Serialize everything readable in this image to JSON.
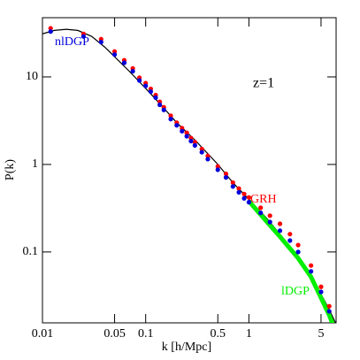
{
  "chart_data": {
    "type": "line",
    "xlabel": "k [h/Mpc]",
    "ylabel": "P(k)",
    "annotations": [
      {
        "text": "z=1"
      }
    ],
    "xlog": true,
    "ylog": true,
    "xlim": [
      0.01,
      7
    ],
    "ylim": [
      0.0155,
      47.5
    ],
    "xticks": [
      0.01,
      0.05,
      0.1,
      0.5,
      1,
      5
    ],
    "yticks": [
      0.1,
      1,
      10
    ],
    "series": [
      {
        "style": "line",
        "color": "#000000",
        "x": [
          0.01,
          0.013,
          0.017,
          0.022,
          0.03,
          0.04,
          0.05,
          0.07,
          0.1,
          0.15,
          0.2,
          0.3,
          0.5,
          0.7,
          1,
          1.5,
          2,
          3,
          4,
          5,
          6,
          7
        ],
        "values": [
          31,
          34,
          35,
          34,
          29,
          22,
          17,
          11.5,
          7.4,
          4.4,
          3.0,
          1.9,
          1.0,
          0.62,
          0.4,
          0.24,
          0.16,
          0.085,
          0.055,
          0.033,
          0.022,
          0.015
        ]
      },
      {
        "name": "lDGP",
        "style": "band",
        "color": "#00ee00",
        "x": [
          1,
          1.5,
          2,
          3,
          4,
          5,
          6,
          6.5
        ],
        "values": [
          0.38,
          0.22,
          0.15,
          0.085,
          0.052,
          0.03,
          0.019,
          0.015
        ]
      },
      {
        "name": "GRH",
        "style": "points",
        "color": "#ff0000",
        "x": [
          0.012,
          0.025,
          0.037,
          0.05,
          0.062,
          0.075,
          0.087,
          0.1,
          0.112,
          0.125,
          0.137,
          0.15,
          0.175,
          0.2,
          0.225,
          0.25,
          0.275,
          0.3,
          0.35,
          0.4,
          0.5,
          0.6,
          0.7,
          0.8,
          0.9,
          1.0,
          1.3,
          1.6,
          2,
          2.5,
          3,
          4,
          5,
          6
        ],
        "values": [
          36,
          31,
          27,
          19.5,
          15.5,
          12.5,
          9.8,
          8.5,
          7.3,
          6.2,
          5.2,
          4.5,
          3.6,
          3.0,
          2.6,
          2.3,
          2.0,
          1.8,
          1.5,
          1.25,
          0.95,
          0.78,
          0.62,
          0.53,
          0.46,
          0.42,
          0.32,
          0.26,
          0.21,
          0.16,
          0.12,
          0.07,
          0.04,
          0.024
        ]
      },
      {
        "name": "nlDGP",
        "style": "points",
        "color": "#0000dd",
        "x": [
          0.012,
          0.025,
          0.037,
          0.05,
          0.062,
          0.075,
          0.087,
          0.1,
          0.112,
          0.125,
          0.137,
          0.15,
          0.175,
          0.2,
          0.225,
          0.25,
          0.275,
          0.3,
          0.35,
          0.4,
          0.5,
          0.6,
          0.7,
          0.8,
          0.9,
          1.0,
          1.3,
          1.6,
          2,
          2.5,
          3,
          4,
          5,
          6
        ],
        "values": [
          33,
          29,
          25,
          18,
          14.5,
          11.6,
          9.1,
          7.9,
          6.8,
          5.8,
          4.8,
          4.2,
          3.3,
          2.8,
          2.4,
          2.1,
          1.85,
          1.65,
          1.38,
          1.15,
          0.87,
          0.71,
          0.56,
          0.48,
          0.41,
          0.37,
          0.28,
          0.22,
          0.175,
          0.135,
          0.1,
          0.06,
          0.035,
          0.021
        ]
      }
    ]
  }
}
